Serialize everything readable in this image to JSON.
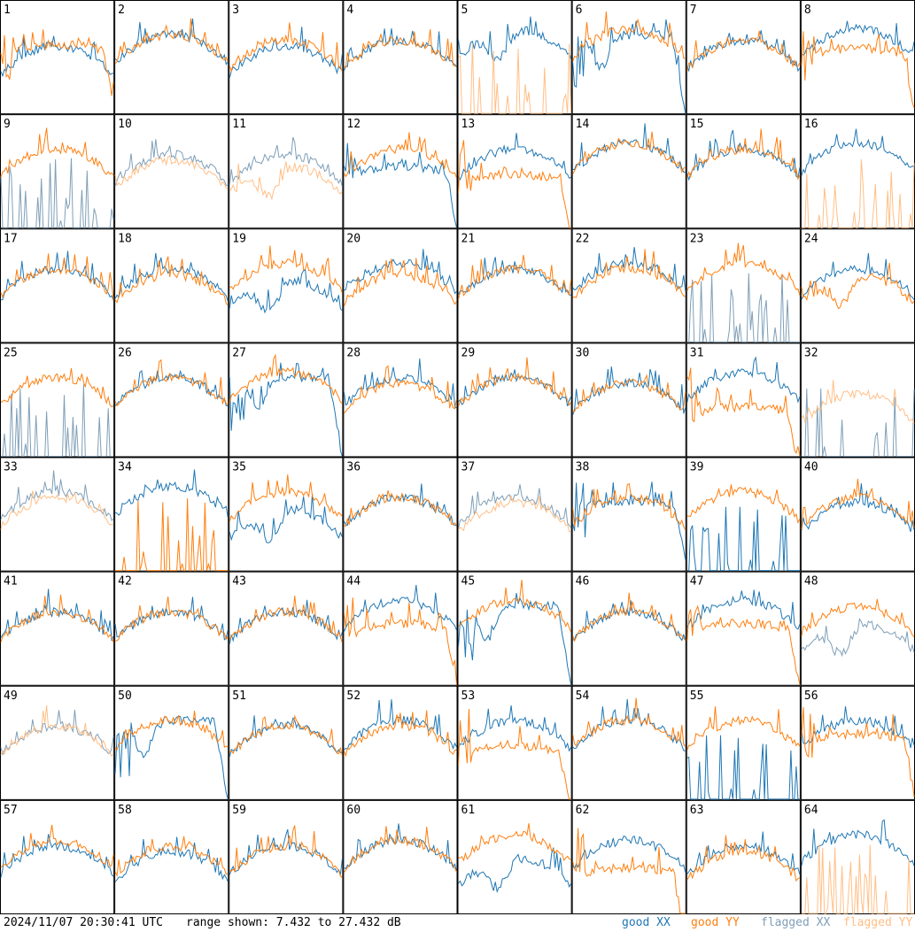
{
  "footer": {
    "timestamp": "2024/11/07 20:30:41 UTC",
    "range_text": "range shown: 7.432 to 27.432 dB"
  },
  "legend": [
    {
      "label": "good XX",
      "color": "#1f77b4"
    },
    {
      "label": "good YY",
      "color": "#ff7f0e"
    },
    {
      "label": "flagged XX",
      "color": "#7f9fb8"
    },
    {
      "label": "flagged YY",
      "color": "#ffbf87"
    }
  ],
  "chart_data": {
    "type": "line",
    "grid": {
      "rows": 8,
      "cols": 8
    },
    "ylim": [
      7.432,
      27.432
    ],
    "yunit": "dB",
    "series_names": [
      "good XX",
      "good YY",
      "flagged XX",
      "flagged YY"
    ],
    "panels": [
      {
        "id": "1",
        "xx": "good",
        "yy": "good",
        "xx_shape": "normal",
        "yy_shape": "plateau",
        "xx_lvl": 0.5,
        "yy_lvl": 0.4
      },
      {
        "id": "2",
        "xx": "good",
        "yy": "good",
        "xx_shape": "normal",
        "yy_shape": "normal",
        "xx_lvl": 0.4,
        "yy_lvl": 0.4
      },
      {
        "id": "3",
        "xx": "good",
        "yy": "good",
        "xx_shape": "normal",
        "yy_shape": "normal",
        "xx_lvl": 0.5,
        "yy_lvl": 0.45
      },
      {
        "id": "4",
        "xx": "good",
        "yy": "good",
        "xx_shape": "normal",
        "yy_shape": "normal",
        "xx_lvl": 0.45,
        "yy_lvl": 0.45
      },
      {
        "id": "5",
        "xx": "good",
        "yy": "flagged",
        "xx_shape": "dip",
        "yy_shape": "spikes",
        "xx_lvl": 0.35,
        "yy_lvl": 0.95
      },
      {
        "id": "6",
        "xx": "good",
        "yy": "good",
        "xx_shape": "dropcurve",
        "yy_shape": "normal",
        "xx_lvl": 0.55,
        "yy_lvl": 0.35
      },
      {
        "id": "7",
        "xx": "good",
        "yy": "good",
        "xx_shape": "normal",
        "yy_shape": "normal",
        "xx_lvl": 0.45,
        "yy_lvl": 0.45
      },
      {
        "id": "8",
        "xx": "good",
        "yy": "good",
        "xx_shape": "normal",
        "yy_shape": "plateau",
        "xx_lvl": 0.35,
        "yy_lvl": 0.45
      },
      {
        "id": "9",
        "xx": "flagged",
        "yy": "good",
        "xx_shape": "spikes",
        "yy_shape": "normal",
        "xx_lvl": 0.9,
        "yy_lvl": 0.4
      },
      {
        "id": "10",
        "xx": "flagged",
        "yy": "flagged",
        "xx_shape": "normal",
        "yy_shape": "normal",
        "xx_lvl": 0.45,
        "yy_lvl": 0.5
      },
      {
        "id": "11",
        "xx": "flagged",
        "yy": "flagged",
        "xx_shape": "normal",
        "yy_shape": "dip",
        "xx_lvl": 0.45,
        "yy_lvl": 0.55
      },
      {
        "id": "12",
        "xx": "good",
        "yy": "good",
        "xx_shape": "plateau",
        "yy_shape": "normal",
        "xx_lvl": 0.5,
        "yy_lvl": 0.4
      },
      {
        "id": "13",
        "xx": "good",
        "yy": "good",
        "xx_shape": "normal",
        "yy_shape": "plateau",
        "xx_lvl": 0.4,
        "yy_lvl": 0.6
      },
      {
        "id": "14",
        "xx": "good",
        "yy": "good",
        "xx_shape": "normal",
        "yy_shape": "normal",
        "xx_lvl": 0.35,
        "yy_lvl": 0.35
      },
      {
        "id": "15",
        "xx": "good",
        "yy": "good",
        "xx_shape": "normal",
        "yy_shape": "normal",
        "xx_lvl": 0.4,
        "yy_lvl": 0.4
      },
      {
        "id": "16",
        "xx": "good",
        "yy": "flagged",
        "xx_shape": "normal",
        "yy_shape": "spikes",
        "xx_lvl": 0.35,
        "yy_lvl": 0.95
      },
      {
        "id": "17",
        "xx": "good",
        "yy": "good",
        "xx_shape": "normal",
        "yy_shape": "normal",
        "xx_lvl": 0.45,
        "yy_lvl": 0.45
      },
      {
        "id": "18",
        "xx": "good",
        "yy": "good",
        "xx_shape": "normal",
        "yy_shape": "normal",
        "xx_lvl": 0.45,
        "yy_lvl": 0.5
      },
      {
        "id": "19",
        "xx": "good",
        "yy": "good",
        "xx_shape": "dip",
        "yy_shape": "normal",
        "xx_lvl": 0.55,
        "yy_lvl": 0.4
      },
      {
        "id": "20",
        "xx": "good",
        "yy": "good",
        "xx_shape": "normal",
        "yy_shape": "normal",
        "xx_lvl": 0.4,
        "yy_lvl": 0.5
      },
      {
        "id": "21",
        "xx": "good",
        "yy": "good",
        "xx_shape": "normal",
        "yy_shape": "normal",
        "xx_lvl": 0.45,
        "yy_lvl": 0.45
      },
      {
        "id": "22",
        "xx": "good",
        "yy": "good",
        "xx_shape": "normal",
        "yy_shape": "normal",
        "xx_lvl": 0.4,
        "yy_lvl": 0.45
      },
      {
        "id": "23",
        "xx": "flagged",
        "yy": "good",
        "xx_shape": "spikes",
        "yy_shape": "normal",
        "xx_lvl": 0.9,
        "yy_lvl": 0.4
      },
      {
        "id": "24",
        "xx": "good",
        "yy": "good",
        "xx_shape": "normal",
        "yy_shape": "dip",
        "xx_lvl": 0.45,
        "yy_lvl": 0.5
      },
      {
        "id": "25",
        "xx": "flagged",
        "yy": "good",
        "xx_shape": "spikes",
        "yy_shape": "normal",
        "xx_lvl": 0.98,
        "yy_lvl": 0.4
      },
      {
        "id": "26",
        "xx": "good",
        "yy": "good",
        "xx_shape": "normal",
        "yy_shape": "normal",
        "xx_lvl": 0.4,
        "yy_lvl": 0.4
      },
      {
        "id": "27",
        "xx": "good",
        "yy": "good",
        "xx_shape": "dropcurve",
        "yy_shape": "normal",
        "xx_lvl": 0.45,
        "yy_lvl": 0.35
      },
      {
        "id": "28",
        "xx": "good",
        "yy": "good",
        "xx_shape": "normal",
        "yy_shape": "normal",
        "xx_lvl": 0.4,
        "yy_lvl": 0.45
      },
      {
        "id": "29",
        "xx": "good",
        "yy": "good",
        "xx_shape": "normal",
        "yy_shape": "normal",
        "xx_lvl": 0.4,
        "yy_lvl": 0.4
      },
      {
        "id": "30",
        "xx": "good",
        "yy": "good",
        "xx_shape": "normal",
        "yy_shape": "normal",
        "xx_lvl": 0.45,
        "yy_lvl": 0.45
      },
      {
        "id": "31",
        "xx": "good",
        "yy": "good",
        "xx_shape": "normal",
        "yy_shape": "plateau",
        "xx_lvl": 0.35,
        "yy_lvl": 0.65
      },
      {
        "id": "32",
        "xx": "flagged",
        "yy": "flagged",
        "xx_shape": "spikes",
        "yy_shape": "normal",
        "xx_lvl": 0.95,
        "yy_lvl": 0.55
      },
      {
        "id": "33",
        "xx": "flagged",
        "yy": "flagged",
        "xx_shape": "normal",
        "yy_shape": "normal",
        "xx_lvl": 0.4,
        "yy_lvl": 0.45
      },
      {
        "id": "34",
        "xx": "good",
        "yy": "good",
        "xx_shape": "normal",
        "yy_shape": "spikes",
        "xx_lvl": 0.35,
        "yy_lvl": 0.9
      },
      {
        "id": "35",
        "xx": "good",
        "yy": "good",
        "xx_shape": "dip",
        "yy_shape": "normal",
        "xx_lvl": 0.55,
        "yy_lvl": 0.4
      },
      {
        "id": "36",
        "xx": "good",
        "yy": "good",
        "xx_shape": "normal",
        "yy_shape": "normal",
        "xx_lvl": 0.45,
        "yy_lvl": 0.45
      },
      {
        "id": "37",
        "xx": "flagged",
        "yy": "flagged",
        "xx_shape": "normal",
        "yy_shape": "normal",
        "xx_lvl": 0.45,
        "yy_lvl": 0.5
      },
      {
        "id": "38",
        "xx": "good",
        "yy": "good",
        "xx_shape": "plateau",
        "yy_shape": "normal",
        "xx_lvl": 0.4,
        "yy_lvl": 0.45
      },
      {
        "id": "39",
        "xx": "good",
        "yy": "good",
        "xx_shape": "spikes",
        "yy_shape": "normal",
        "xx_lvl": 0.95,
        "yy_lvl": 0.4
      },
      {
        "id": "40",
        "xx": "good",
        "yy": "good",
        "xx_shape": "normal",
        "yy_shape": "normal",
        "xx_lvl": 0.5,
        "yy_lvl": 0.45
      },
      {
        "id": "41",
        "xx": "good",
        "yy": "good",
        "xx_shape": "normal",
        "yy_shape": "normal",
        "xx_lvl": 0.45,
        "yy_lvl": 0.45
      },
      {
        "id": "42",
        "xx": "good",
        "yy": "good",
        "xx_shape": "normal",
        "yy_shape": "normal",
        "xx_lvl": 0.45,
        "yy_lvl": 0.45
      },
      {
        "id": "43",
        "xx": "good",
        "yy": "good",
        "xx_shape": "normal",
        "yy_shape": "normal",
        "xx_lvl": 0.45,
        "yy_lvl": 0.45
      },
      {
        "id": "44",
        "xx": "good",
        "yy": "good",
        "xx_shape": "normal",
        "yy_shape": "plateau",
        "xx_lvl": 0.35,
        "yy_lvl": 0.5
      },
      {
        "id": "45",
        "xx": "good",
        "yy": "good",
        "xx_shape": "dropcurve",
        "yy_shape": "normal",
        "xx_lvl": 0.55,
        "yy_lvl": 0.35
      },
      {
        "id": "46",
        "xx": "good",
        "yy": "good",
        "xx_shape": "normal",
        "yy_shape": "normal",
        "xx_lvl": 0.45,
        "yy_lvl": 0.45
      },
      {
        "id": "47",
        "xx": "good",
        "yy": "good",
        "xx_shape": "normal",
        "yy_shape": "plateau",
        "xx_lvl": 0.35,
        "yy_lvl": 0.5
      },
      {
        "id": "48",
        "xx": "flagged",
        "yy": "good",
        "xx_shape": "dip",
        "yy_shape": "normal",
        "xx_lvl": 0.55,
        "yy_lvl": 0.4
      },
      {
        "id": "49",
        "xx": "flagged",
        "yy": "flagged",
        "xx_shape": "normal",
        "yy_shape": "normal",
        "xx_lvl": 0.45,
        "yy_lvl": 0.45
      },
      {
        "id": "50",
        "xx": "good",
        "yy": "good",
        "xx_shape": "dropcurve",
        "yy_shape": "normal",
        "xx_lvl": 0.4,
        "yy_lvl": 0.4
      },
      {
        "id": "51",
        "xx": "good",
        "yy": "good",
        "xx_shape": "normal",
        "yy_shape": "normal",
        "xx_lvl": 0.45,
        "yy_lvl": 0.45
      },
      {
        "id": "52",
        "xx": "good",
        "yy": "good",
        "xx_shape": "normal",
        "yy_shape": "normal",
        "xx_lvl": 0.4,
        "yy_lvl": 0.45
      },
      {
        "id": "53",
        "xx": "good",
        "yy": "good",
        "xx_shape": "normal",
        "yy_shape": "plateau",
        "xx_lvl": 0.4,
        "yy_lvl": 0.6
      },
      {
        "id": "54",
        "xx": "good",
        "yy": "good",
        "xx_shape": "normal",
        "yy_shape": "normal",
        "xx_lvl": 0.4,
        "yy_lvl": 0.4
      },
      {
        "id": "55",
        "xx": "good",
        "yy": "good",
        "xx_shape": "spikes",
        "yy_shape": "normal",
        "xx_lvl": 0.9,
        "yy_lvl": 0.4
      },
      {
        "id": "56",
        "xx": "good",
        "yy": "good",
        "xx_shape": "normal",
        "yy_shape": "plateau",
        "xx_lvl": 0.4,
        "yy_lvl": 0.45
      },
      {
        "id": "57",
        "xx": "good",
        "yy": "good",
        "xx_shape": "normal",
        "yy_shape": "normal",
        "xx_lvl": 0.5,
        "yy_lvl": 0.45
      },
      {
        "id": "58",
        "xx": "good",
        "yy": "good",
        "xx_shape": "normal",
        "yy_shape": "normal",
        "xx_lvl": 0.55,
        "yy_lvl": 0.5
      },
      {
        "id": "59",
        "xx": "good",
        "yy": "good",
        "xx_shape": "normal",
        "yy_shape": "normal",
        "xx_lvl": 0.5,
        "yy_lvl": 0.5
      },
      {
        "id": "60",
        "xx": "good",
        "yy": "good",
        "xx_shape": "normal",
        "yy_shape": "normal",
        "xx_lvl": 0.45,
        "yy_lvl": 0.45
      },
      {
        "id": "61",
        "xx": "good",
        "yy": "good",
        "xx_shape": "dip",
        "yy_shape": "normal",
        "xx_lvl": 0.6,
        "yy_lvl": 0.4
      },
      {
        "id": "62",
        "xx": "good",
        "yy": "good",
        "xx_shape": "normal",
        "yy_shape": "plateau",
        "xx_lvl": 0.45,
        "yy_lvl": 0.7
      },
      {
        "id": "63",
        "xx": "good",
        "yy": "good",
        "xx_shape": "normal",
        "yy_shape": "normal",
        "xx_lvl": 0.5,
        "yy_lvl": 0.55
      },
      {
        "id": "64",
        "xx": "good",
        "yy": "flagged",
        "xx_shape": "normal",
        "yy_shape": "spikes",
        "xx_lvl": 0.4,
        "yy_lvl": 0.95
      }
    ]
  }
}
